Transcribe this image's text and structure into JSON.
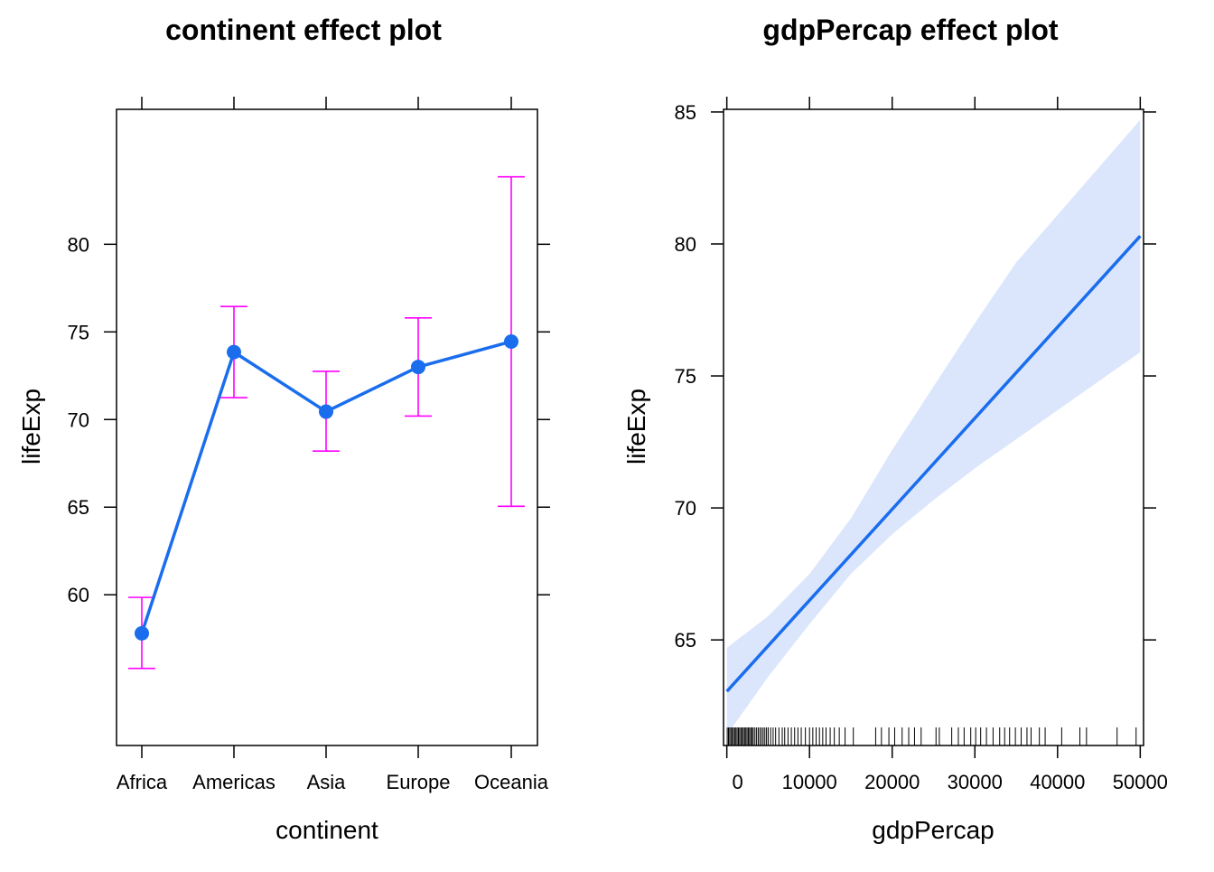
{
  "chart_data": [
    {
      "type": "line",
      "title": "continent effect plot",
      "xlabel": "continent",
      "ylabel": "lifeExp",
      "categories": [
        "Africa",
        "Americas",
        "Asia",
        "Europe",
        "Oceania"
      ],
      "values": [
        57.8,
        73.85,
        70.45,
        73.0,
        74.45
      ],
      "lower": [
        55.8,
        71.25,
        68.2,
        70.2,
        65.05
      ],
      "upper": [
        59.85,
        76.45,
        72.75,
        75.8,
        83.85
      ],
      "ylim": [
        51.4,
        87.7
      ],
      "yticks": [
        60,
        65,
        70,
        75,
        80
      ],
      "line_color": "#1a6ded",
      "errorbar_color": "#ff00ff",
      "grid": false
    },
    {
      "type": "line",
      "title": "gdpPercap effect plot",
      "xlabel": "gdpPercap",
      "ylabel": "lifeExp",
      "x": [
        0,
        50000
      ],
      "y": [
        63.05,
        80.3
      ],
      "band_x": [
        0,
        5000,
        10000,
        15000,
        20000,
        25000,
        30000,
        35000,
        40000,
        45000,
        50000
      ],
      "band_lower": [
        61.4,
        63.6,
        65.6,
        67.5,
        69.0,
        70.3,
        71.5,
        72.6,
        73.7,
        74.8,
        75.9
      ],
      "band_upper": [
        64.7,
        65.9,
        67.5,
        69.6,
        72.2,
        74.6,
        77.0,
        79.3,
        81.1,
        82.9,
        84.7
      ],
      "xlim": [
        -400,
        50400
      ],
      "ylim": [
        61,
        85.1
      ],
      "xticks": [
        0,
        10000,
        20000,
        30000,
        40000,
        50000
      ],
      "yticks": [
        65,
        70,
        75,
        80,
        85
      ],
      "rug": [
        50,
        200,
        350,
        500,
        650,
        800,
        950,
        1100,
        1250,
        1400,
        1550,
        1700,
        1850,
        2000,
        2150,
        2300,
        2450,
        2600,
        2750,
        2900,
        3050,
        3200,
        3400,
        3600,
        3800,
        4000,
        4200,
        4400,
        4600,
        4800,
        5000,
        5300,
        5600,
        5900,
        6300,
        6700,
        7000,
        7400,
        7800,
        8200,
        8600,
        9000,
        9500,
        10000,
        10400,
        10800,
        11200,
        11600,
        12000,
        12500,
        13000,
        13600,
        14300,
        15300,
        18000,
        18700,
        19600,
        20300,
        21200,
        22000,
        22700,
        23500,
        25300,
        25700,
        27200,
        28000,
        28700,
        29500,
        30100,
        30700,
        31400,
        32200,
        33000,
        33600,
        34200,
        34900,
        35600,
        36300,
        36800,
        37800,
        38500,
        40500,
        42700,
        43500,
        47200,
        49500
      ],
      "line_color": "#1a6ded",
      "band_color": "#dbe6fd",
      "grid": false
    }
  ]
}
